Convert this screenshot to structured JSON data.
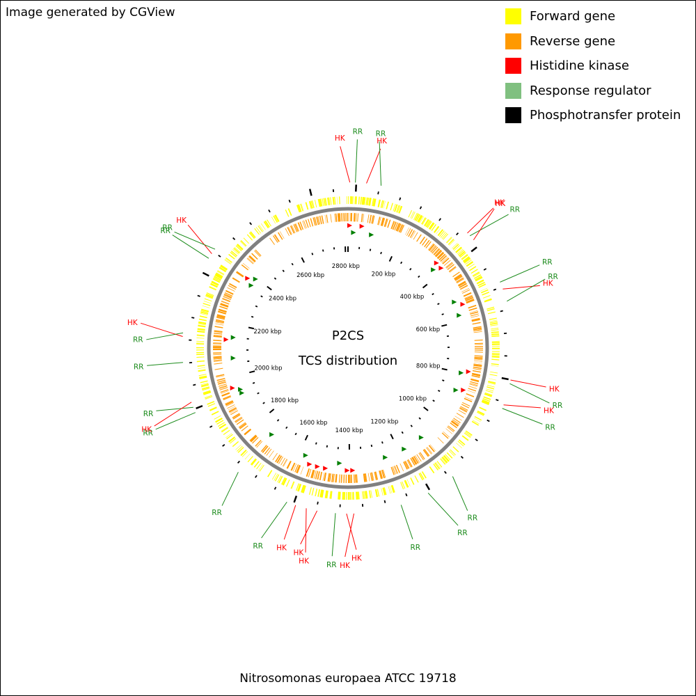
{
  "header": {
    "credit": "Image generated by CGView"
  },
  "legend": [
    {
      "label": "Forward gene",
      "color": "#ffff00"
    },
    {
      "label": "Reverse gene",
      "color": "#ff9900"
    },
    {
      "label": "Histidine kinase",
      "color": "#ff0000"
    },
    {
      "label": "Response regulator",
      "color": "#80c080"
    },
    {
      "label": "Phosphotransfer protein",
      "color": "#000000"
    }
  ],
  "center": {
    "line1": "P2CS",
    "line2": "TCS distribution"
  },
  "footer": {
    "organism": "Nitrosomonas europaea ATCC 19718"
  },
  "colors": {
    "forward": "#ffff00",
    "reverse": "#ff9900",
    "backbone": "#808080",
    "hk": "#ff0000",
    "rr": "#1a8a1a",
    "rr_marker": "#008000",
    "hk_label": "#ff0000",
    "rr_label": "#1a8a1a"
  },
  "genome": {
    "length_kbp": 2812,
    "tick_labels": [
      "200 kbp",
      "400 kbp",
      "600 kbp",
      "800 kbp",
      "1000 kbp",
      "1200 kbp",
      "1400 kbp",
      "1600 kbp",
      "1800 kbp",
      "2000 kbp",
      "2200 kbp",
      "2400 kbp",
      "2600 kbp",
      "2800 kbp"
    ],
    "tick_label_values_kbp": [
      200,
      400,
      600,
      800,
      1000,
      1200,
      1400,
      1600,
      1800,
      2000,
      2200,
      2400,
      2600,
      2800
    ]
  },
  "features": [
    {
      "label": "HK",
      "type": "hk",
      "pos_kbp": 5
    },
    {
      "label": "RR",
      "type": "rr",
      "pos_kbp": 20
    },
    {
      "label": "HK",
      "type": "hk",
      "pos_kbp": 50
    },
    {
      "label": "RR",
      "type": "rr",
      "pos_kbp": 90
    },
    {
      "label": "HK",
      "type": "hk",
      "pos_kbp": 360
    },
    {
      "label": "RR",
      "type": "rr",
      "pos_kbp": 370
    },
    {
      "label": "HK",
      "type": "hk",
      "pos_kbp": 385
    },
    {
      "label": "RR",
      "type": "rr",
      "pos_kbp": 520
    },
    {
      "label": "HK",
      "type": "hk",
      "pos_kbp": 540
    },
    {
      "label": "RR",
      "type": "rr",
      "pos_kbp": 575
    },
    {
      "label": "HK",
      "type": "hk",
      "pos_kbp": 790
    },
    {
      "label": "RR",
      "type": "rr",
      "pos_kbp": 800
    },
    {
      "label": "HK",
      "type": "hk",
      "pos_kbp": 860
    },
    {
      "label": "RR",
      "type": "rr",
      "pos_kbp": 870
    },
    {
      "label": "RR",
      "type": "rr",
      "pos_kbp": 1100
    },
    {
      "label": "RR",
      "type": "rr",
      "pos_kbp": 1180
    },
    {
      "label": "RR",
      "type": "rr",
      "pos_kbp": 1260
    },
    {
      "label": "HK",
      "type": "hk",
      "pos_kbp": 1390
    },
    {
      "label": "HK",
      "type": "hk",
      "pos_kbp": 1410
    },
    {
      "label": "RR",
      "type": "rr",
      "pos_kbp": 1440
    },
    {
      "label": "HK",
      "type": "hk",
      "pos_kbp": 1490
    },
    {
      "label": "HK",
      "type": "hk",
      "pos_kbp": 1520
    },
    {
      "label": "HK",
      "type": "hk",
      "pos_kbp": 1550
    },
    {
      "label": "RR",
      "type": "rr",
      "pos_kbp": 1575
    },
    {
      "label": "RR",
      "type": "rr",
      "pos_kbp": 1730
    },
    {
      "label": "RR",
      "type": "rr",
      "pos_kbp": 1930
    },
    {
      "label": "RR",
      "type": "rr",
      "pos_kbp": 1945
    },
    {
      "label": "HK",
      "type": "hk",
      "pos_kbp": 1960
    },
    {
      "label": "RR",
      "type": "rr",
      "pos_kbp": 2070
    },
    {
      "label": "HK",
      "type": "hk",
      "pos_kbp": 2140
    },
    {
      "label": "RR",
      "type": "rr",
      "pos_kbp": 2150
    },
    {
      "label": "RR",
      "type": "rr",
      "pos_kbp": 2365
    },
    {
      "label": "HK",
      "type": "hk",
      "pos_kbp": 2380
    },
    {
      "label": "RR",
      "type": "rr",
      "pos_kbp": 2395
    }
  ]
}
